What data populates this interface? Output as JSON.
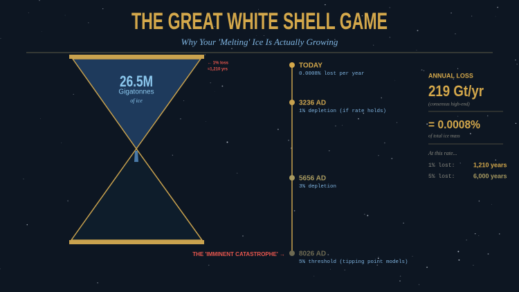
{
  "header": {
    "title": "THE GREAT WHITE SHELL GAME",
    "subtitle": "Why Your 'Melting' Ice Is Actually Growing"
  },
  "hourglass": {
    "amount": "26.5M",
    "unit": "Gigatonnes",
    "note": "of ice",
    "marker": [
      "← 1% loss",
      "≈1,210 yrs"
    ]
  },
  "timeline": [
    {
      "label": "TODAY",
      "detail": "0.0008% lost per year"
    },
    {
      "label": "3236 AD",
      "detail": "1% depletion (if rate holds)"
    },
    {
      "label": "5656 AD",
      "detail": "3% depletion"
    },
    {
      "label": "8026 AD",
      "detail": "5% threshold (tipping point models)"
    }
  ],
  "callout": "THE 'IMMINENT CATASTROPHE' →",
  "sidebar": {
    "heading": "ANNUAL LOSS",
    "rate": "219 Gt/yr",
    "rate_note": "(consensus high-end)",
    "share": "= 0.0008%",
    "share_note": "of total ice mass",
    "intro": "At this rate...",
    "rows": [
      [
        "1% lost:",
        "1,210 years"
      ],
      [
        "5% lost:",
        "6,000 years"
      ]
    ]
  }
}
